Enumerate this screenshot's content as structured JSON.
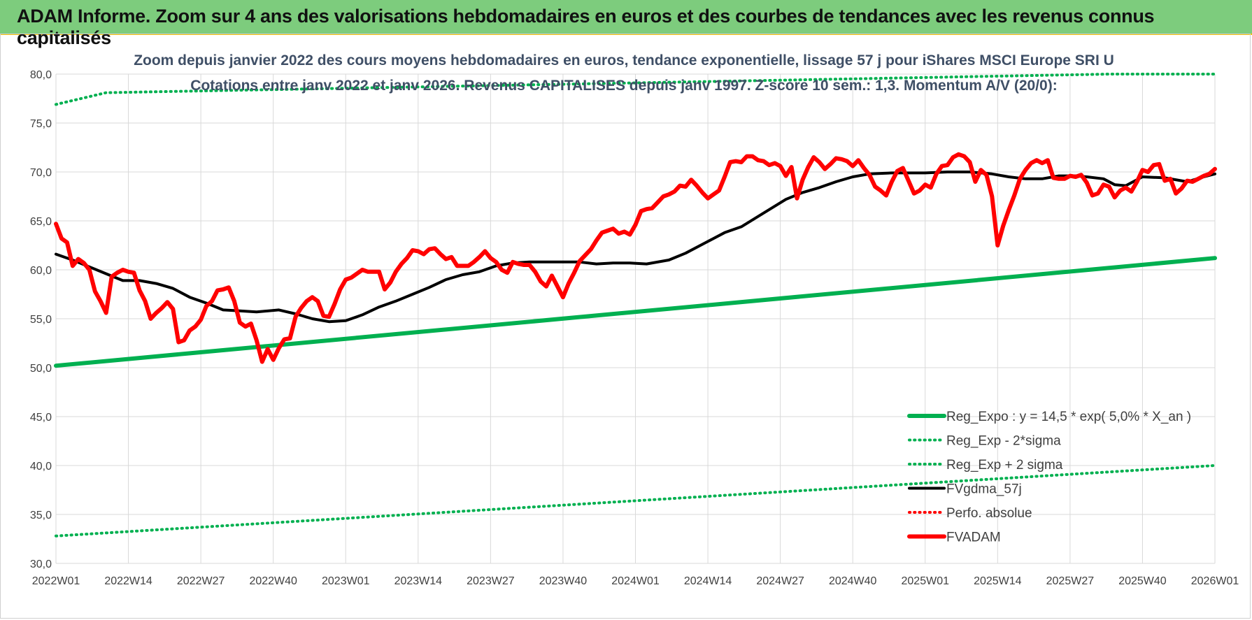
{
  "banner": {
    "title": "ADAM Informe. Zoom sur 4 ans des valorisations hebdomadaires en euros et des courbes de tendances avec les revenus connus capitalisés"
  },
  "chart_data": {
    "type": "line",
    "title_line1": "Zoom depuis janvier 2022 des cours moyens hebdomadaires en euros, tendance exponentielle, lissage 57 j pour iShares MSCI Europe SRI U",
    "title_line2": "Cotations entre janv 2022 et janv 2026. Revenus CAPITALISES depuis janv 1997. Z-score 10 sem.: 1,3. Momentum A/V (20/0):",
    "ylim": [
      30,
      80
    ],
    "y_ticks": [
      "30,0",
      "35,0",
      "40,0",
      "45,0",
      "50,0",
      "55,0",
      "60,0",
      "65,0",
      "70,0",
      "75,0",
      "80,0"
    ],
    "x_ticks": [
      "2022W01",
      "2022W14",
      "2022W27",
      "2022W40",
      "2023W01",
      "2023W14",
      "2023W27",
      "2023W40",
      "2024W01",
      "2024W14",
      "2024W27",
      "2024W40",
      "2025W01",
      "2025W14",
      "2025W27",
      "2025W40",
      "2026W01"
    ],
    "grid": true,
    "legend_position": "bottom-right",
    "series": [
      {
        "name": "Reg_Expo : y = 14,5 * exp( 5,0% *  X_an )",
        "color": "#00b050",
        "style": "solid-thick",
        "values": [
          [
            0,
            50.2
          ],
          [
            208,
            61.2
          ]
        ]
      },
      {
        "name": "Reg_Exp - 2*sigma",
        "color": "#00b050",
        "style": "dotted",
        "values": [
          [
            0,
            32.8
          ],
          [
            208,
            40.0
          ]
        ]
      },
      {
        "name": "Reg_Exp + 2 sigma",
        "color": "#00b050",
        "style": "dotted",
        "values": [
          [
            0,
            76.9
          ],
          [
            9,
            78.1
          ],
          [
            189,
            80.0
          ],
          [
            208,
            80.0
          ]
        ]
      },
      {
        "name": "FVgdma_57j",
        "color": "#000000",
        "style": "solid",
        "values": [
          [
            0,
            61.6
          ],
          [
            3,
            61.0
          ],
          [
            6,
            60.3
          ],
          [
            9,
            59.6
          ],
          [
            12,
            58.9
          ],
          [
            15,
            58.9
          ],
          [
            18,
            58.6
          ],
          [
            21,
            58.1
          ],
          [
            24,
            57.2
          ],
          [
            27,
            56.6
          ],
          [
            30,
            55.9
          ],
          [
            33,
            55.8
          ],
          [
            36,
            55.7
          ],
          [
            40,
            55.9
          ],
          [
            43,
            55.5
          ],
          [
            46,
            55.0
          ],
          [
            49,
            54.7
          ],
          [
            52,
            54.8
          ],
          [
            55,
            55.4
          ],
          [
            58,
            56.2
          ],
          [
            61,
            56.8
          ],
          [
            64,
            57.5
          ],
          [
            67,
            58.2
          ],
          [
            70,
            59.0
          ],
          [
            73,
            59.5
          ],
          [
            76,
            59.8
          ],
          [
            79,
            60.4
          ],
          [
            82,
            60.7
          ],
          [
            85,
            60.8
          ],
          [
            88,
            60.8
          ],
          [
            91,
            60.8
          ],
          [
            94,
            60.8
          ],
          [
            97,
            60.6
          ],
          [
            100,
            60.7
          ],
          [
            103,
            60.7
          ],
          [
            106,
            60.6
          ],
          [
            110,
            61.0
          ],
          [
            113,
            61.7
          ],
          [
            117,
            62.9
          ],
          [
            120,
            63.8
          ],
          [
            123,
            64.4
          ],
          [
            127,
            65.8
          ],
          [
            131,
            67.2
          ],
          [
            134,
            67.9
          ],
          [
            137,
            68.4
          ],
          [
            140,
            69.0
          ],
          [
            143,
            69.5
          ],
          [
            146,
            69.8
          ],
          [
            150,
            69.9
          ],
          [
            156,
            69.9
          ],
          [
            160,
            70.0
          ],
          [
            164,
            70.0
          ],
          [
            168,
            69.8
          ],
          [
            171,
            69.5
          ],
          [
            174,
            69.3
          ],
          [
            177,
            69.3
          ],
          [
            180,
            69.6
          ],
          [
            183,
            69.6
          ],
          [
            185,
            69.5
          ],
          [
            188,
            69.3
          ],
          [
            190,
            68.7
          ],
          [
            192,
            68.6
          ],
          [
            195,
            69.5
          ],
          [
            199,
            69.4
          ],
          [
            203,
            69.0
          ],
          [
            206,
            69.5
          ],
          [
            208,
            69.8
          ]
        ]
      },
      {
        "name": "Perfo. absolue",
        "color": "#ff0000",
        "style": "dotted",
        "values": []
      },
      {
        "name": "FVADAM",
        "color": "#ff0000",
        "style": "solid-thick",
        "values": [
          [
            0,
            64.7
          ],
          [
            1,
            63.2
          ],
          [
            2,
            62.8
          ],
          [
            3,
            60.4
          ],
          [
            4,
            61.1
          ],
          [
            5,
            60.7
          ],
          [
            6,
            60.0
          ],
          [
            7,
            57.8
          ],
          [
            8,
            56.8
          ],
          [
            9,
            55.6
          ],
          [
            10,
            59.3
          ],
          [
            11,
            59.7
          ],
          [
            12,
            60.0
          ],
          [
            13,
            59.8
          ],
          [
            14,
            59.7
          ],
          [
            15,
            57.9
          ],
          [
            16,
            56.8
          ],
          [
            17,
            55.0
          ],
          [
            18,
            55.6
          ],
          [
            19,
            56.1
          ],
          [
            20,
            56.7
          ],
          [
            21,
            56.0
          ],
          [
            22,
            52.6
          ],
          [
            23,
            52.8
          ],
          [
            24,
            53.8
          ],
          [
            25,
            54.2
          ],
          [
            26,
            54.9
          ],
          [
            27,
            56.3
          ],
          [
            28,
            56.8
          ],
          [
            29,
            57.9
          ],
          [
            30,
            58.0
          ],
          [
            31,
            58.2
          ],
          [
            32,
            56.8
          ],
          [
            33,
            54.6
          ],
          [
            34,
            54.2
          ],
          [
            35,
            54.5
          ],
          [
            36,
            52.8
          ],
          [
            37,
            50.6
          ],
          [
            38,
            51.9
          ],
          [
            39,
            50.8
          ],
          [
            40,
            52.0
          ],
          [
            41,
            52.9
          ],
          [
            42,
            53.0
          ],
          [
            43,
            55.2
          ],
          [
            44,
            56.1
          ],
          [
            45,
            56.8
          ],
          [
            46,
            57.2
          ],
          [
            47,
            56.8
          ],
          [
            48,
            55.3
          ],
          [
            49,
            55.2
          ],
          [
            50,
            56.5
          ],
          [
            51,
            58.0
          ],
          [
            52,
            59.0
          ],
          [
            53,
            59.2
          ],
          [
            54,
            59.6
          ],
          [
            55,
            60.0
          ],
          [
            56,
            59.8
          ],
          [
            57,
            59.8
          ],
          [
            58,
            59.8
          ],
          [
            59,
            58.0
          ],
          [
            60,
            58.7
          ],
          [
            61,
            59.8
          ],
          [
            62,
            60.6
          ],
          [
            63,
            61.2
          ],
          [
            64,
            62.0
          ],
          [
            65,
            61.9
          ],
          [
            66,
            61.6
          ],
          [
            67,
            62.1
          ],
          [
            68,
            62.2
          ],
          [
            69,
            61.6
          ],
          [
            70,
            61.1
          ],
          [
            71,
            61.3
          ],
          [
            72,
            60.4
          ],
          [
            73,
            60.4
          ],
          [
            74,
            60.4
          ],
          [
            75,
            60.8
          ],
          [
            76,
            61.3
          ],
          [
            77,
            61.9
          ],
          [
            78,
            61.2
          ],
          [
            79,
            60.8
          ],
          [
            80,
            60.0
          ],
          [
            81,
            59.7
          ],
          [
            82,
            60.8
          ],
          [
            83,
            60.6
          ],
          [
            84,
            60.5
          ],
          [
            85,
            60.5
          ],
          [
            86,
            59.8
          ],
          [
            87,
            58.8
          ],
          [
            88,
            58.3
          ],
          [
            89,
            59.4
          ],
          [
            90,
            58.3
          ],
          [
            91,
            57.2
          ],
          [
            92,
            58.6
          ],
          [
            93,
            59.7
          ],
          [
            94,
            60.9
          ],
          [
            95,
            61.5
          ],
          [
            96,
            62.1
          ],
          [
            97,
            63.0
          ],
          [
            98,
            63.8
          ],
          [
            99,
            64.0
          ],
          [
            100,
            64.2
          ],
          [
            101,
            63.7
          ],
          [
            102,
            63.9
          ],
          [
            103,
            63.6
          ],
          [
            104,
            64.6
          ],
          [
            105,
            66.0
          ],
          [
            106,
            66.2
          ],
          [
            107,
            66.3
          ],
          [
            108,
            66.9
          ],
          [
            109,
            67.5
          ],
          [
            110,
            67.7
          ],
          [
            111,
            68.0
          ],
          [
            112,
            68.6
          ],
          [
            113,
            68.5
          ],
          [
            114,
            69.2
          ],
          [
            115,
            68.6
          ],
          [
            116,
            67.9
          ],
          [
            117,
            67.3
          ],
          [
            118,
            67.7
          ],
          [
            119,
            68.1
          ],
          [
            120,
            69.5
          ],
          [
            121,
            71.0
          ],
          [
            122,
            71.1
          ],
          [
            123,
            71.0
          ],
          [
            124,
            71.6
          ],
          [
            125,
            71.6
          ],
          [
            126,
            71.2
          ],
          [
            127,
            71.1
          ],
          [
            128,
            70.7
          ],
          [
            129,
            70.9
          ],
          [
            130,
            70.6
          ],
          [
            131,
            69.6
          ],
          [
            132,
            70.5
          ],
          [
            133,
            67.3
          ],
          [
            134,
            69.2
          ],
          [
            135,
            70.5
          ],
          [
            136,
            71.5
          ],
          [
            137,
            71.0
          ],
          [
            138,
            70.3
          ],
          [
            139,
            70.8
          ],
          [
            140,
            71.4
          ],
          [
            141,
            71.3
          ],
          [
            142,
            71.1
          ],
          [
            143,
            70.6
          ],
          [
            144,
            71.2
          ],
          [
            145,
            70.4
          ],
          [
            146,
            69.7
          ],
          [
            147,
            68.5
          ],
          [
            148,
            68.1
          ],
          [
            149,
            67.6
          ],
          [
            150,
            69.0
          ],
          [
            151,
            70.1
          ],
          [
            152,
            70.4
          ],
          [
            153,
            69.1
          ],
          [
            154,
            67.8
          ],
          [
            155,
            68.1
          ],
          [
            156,
            68.7
          ],
          [
            157,
            68.4
          ],
          [
            158,
            69.8
          ],
          [
            159,
            70.6
          ],
          [
            160,
            70.7
          ],
          [
            161,
            71.5
          ],
          [
            162,
            71.8
          ],
          [
            163,
            71.6
          ],
          [
            164,
            71.0
          ],
          [
            165,
            69.0
          ],
          [
            166,
            70.2
          ],
          [
            167,
            69.7
          ],
          [
            168,
            67.5
          ],
          [
            169,
            62.5
          ],
          [
            170,
            64.5
          ],
          [
            171,
            66.1
          ],
          [
            172,
            67.6
          ],
          [
            173,
            69.3
          ],
          [
            174,
            70.2
          ],
          [
            175,
            70.9
          ],
          [
            176,
            71.2
          ],
          [
            177,
            70.9
          ],
          [
            178,
            71.2
          ],
          [
            179,
            69.4
          ],
          [
            180,
            69.3
          ],
          [
            181,
            69.3
          ],
          [
            182,
            69.6
          ],
          [
            183,
            69.5
          ],
          [
            184,
            69.7
          ],
          [
            185,
            68.9
          ],
          [
            186,
            67.6
          ],
          [
            187,
            67.8
          ],
          [
            188,
            68.7
          ],
          [
            189,
            68.5
          ],
          [
            190,
            67.4
          ],
          [
            191,
            68.1
          ],
          [
            192,
            68.4
          ],
          [
            193,
            68.0
          ],
          [
            194,
            69.0
          ],
          [
            195,
            70.2
          ],
          [
            196,
            70.0
          ],
          [
            197,
            70.7
          ],
          [
            198,
            70.8
          ],
          [
            199,
            69.1
          ],
          [
            200,
            69.3
          ],
          [
            201,
            67.8
          ],
          [
            202,
            68.3
          ],
          [
            203,
            69.1
          ],
          [
            204,
            69.0
          ],
          [
            205,
            69.3
          ],
          [
            206,
            69.6
          ],
          [
            207,
            69.8
          ],
          [
            208,
            70.3
          ]
        ]
      }
    ]
  }
}
